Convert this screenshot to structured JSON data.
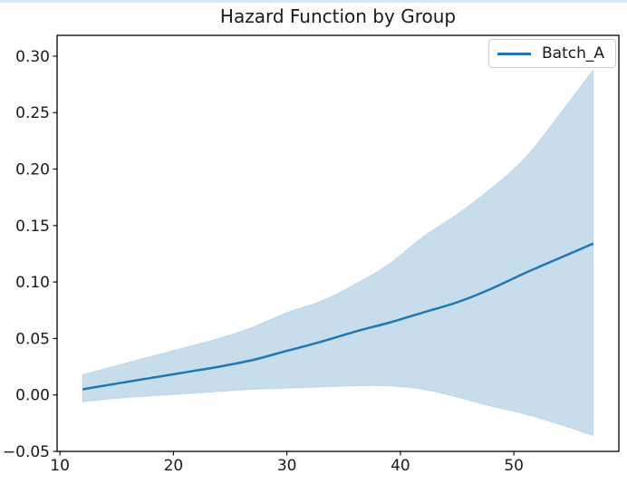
{
  "figure": {
    "title": "Hazard Function by Group",
    "background_color": "#ffffff",
    "top_strip_color": "#d9e7f5"
  },
  "chart_data": {
    "type": "line",
    "title": "Hazard Function by Group",
    "xlabel": "",
    "ylabel": "",
    "grid": false,
    "xlim": [
      9.75,
      59.25
    ],
    "ylim": [
      -0.05,
      0.3184
    ],
    "xticks": [
      {
        "value": 10,
        "label": "10"
      },
      {
        "value": 20,
        "label": "20"
      },
      {
        "value": 30,
        "label": "30"
      },
      {
        "value": 40,
        "label": "40"
      },
      {
        "value": 50,
        "label": "50"
      }
    ],
    "yticks": [
      {
        "value": -0.05,
        "label": "−0.05"
      },
      {
        "value": 0.0,
        "label": "0.00"
      },
      {
        "value": 0.05,
        "label": "0.05"
      },
      {
        "value": 0.1,
        "label": "0.10"
      },
      {
        "value": 0.15,
        "label": "0.15"
      },
      {
        "value": 0.2,
        "label": "0.20"
      },
      {
        "value": 0.25,
        "label": "0.25"
      },
      {
        "value": 0.3,
        "label": "0.30"
      }
    ],
    "legend": {
      "position": "upper right",
      "entries": [
        "Batch_A"
      ]
    },
    "axis_color": "#000000",
    "series": [
      {
        "name": "Batch_A",
        "color": "#1f77b4",
        "line_width": 2.5,
        "ci_fill_color": "#1f77b4",
        "ci_fill_opacity": 0.25,
        "x": [
          12,
          15,
          18,
          21,
          24,
          27,
          30,
          33,
          36,
          39,
          42,
          45,
          48,
          51,
          54,
          57
        ],
        "y": [
          0.005,
          0.01,
          0.015,
          0.02,
          0.025,
          0.031,
          0.039,
          0.047,
          0.056,
          0.064,
          0.073,
          0.082,
          0.094,
          0.108,
          0.121,
          0.134
        ],
        "ci_upper": [
          0.018,
          0.026,
          0.034,
          0.042,
          0.05,
          0.06,
          0.073,
          0.083,
          0.098,
          0.116,
          0.14,
          0.16,
          0.183,
          0.21,
          0.248,
          0.288
        ],
        "ci_lower": [
          -0.006,
          -0.003,
          -0.001,
          0.001,
          0.003,
          0.005,
          0.006,
          0.007,
          0.008,
          0.008,
          0.005,
          -0.002,
          -0.01,
          -0.017,
          -0.026,
          -0.036
        ]
      }
    ]
  }
}
